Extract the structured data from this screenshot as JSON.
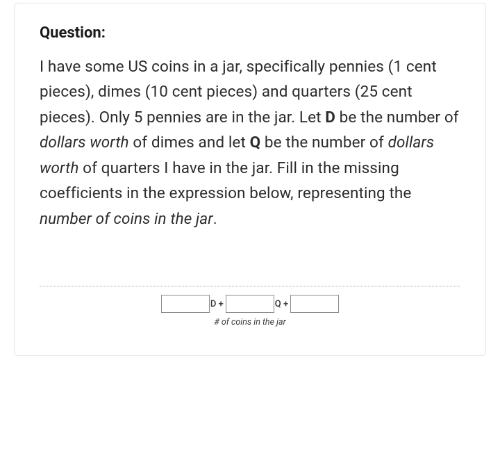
{
  "heading": "Question:",
  "body": {
    "p1": "I have some US coins in a jar, specifically pennies (1 cent pieces), dimes (10 cent pieces) and quarters (25 cent pieces). Only 5 pennies are in the jar. Let ",
    "D": "D",
    "p2": " be the number of ",
    "dw1": "dollars worth",
    "p3": " of dimes and let ",
    "Q": "Q",
    "p4": " be the number of ",
    "dw2": "dollars worth",
    "p5": " of quarters I have in the jar. Fill in the missing coefficients in the expression below, representing the ",
    "nc": "number of coins in the jar",
    "p6": "."
  },
  "expr": {
    "coef1": "",
    "op1": "D +",
    "coef2": "",
    "op2": "Q +",
    "coef3": "",
    "caption": "# of coins in the jar"
  },
  "colors": {
    "text": "#1a1a1a",
    "border": "#e5e5e5",
    "input_border": "#8a8a8a",
    "dotted": "#a8a8a8"
  }
}
